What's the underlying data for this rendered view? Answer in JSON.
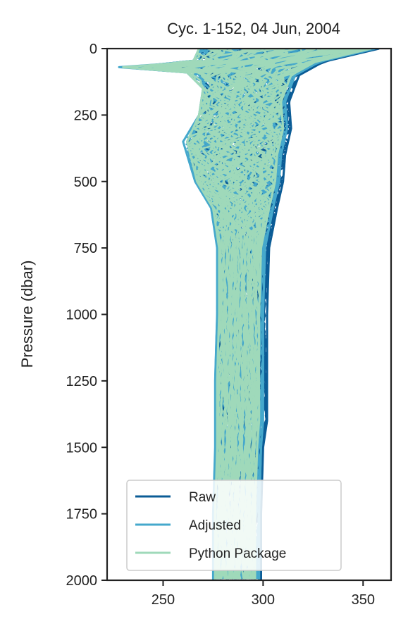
{
  "chart_data": {
    "type": "line",
    "title": "Cyc. 1-152, 04 Jun, 2004",
    "xlabel": "",
    "ylabel": "Pressure (dbar)",
    "xlim": [
      222,
      364
    ],
    "ylim": [
      2000,
      0
    ],
    "y_inverted": true,
    "x_ticks": [
      "250",
      "300",
      "350"
    ],
    "y_ticks": [
      "0",
      "250",
      "500",
      "750",
      "1000",
      "1250",
      "1500",
      "1750",
      "2000"
    ],
    "grid": false,
    "legend_position": "lower-left",
    "series": [
      {
        "name": "Raw",
        "color": "#0b5c96",
        "envelope_min": [
          [
            0,
            270
          ],
          [
            50,
            268
          ],
          [
            70,
            240
          ],
          [
            90,
            268
          ],
          [
            150,
            272
          ],
          [
            250,
            270
          ],
          [
            350,
            262
          ],
          [
            500,
            268
          ],
          [
            600,
            275
          ],
          [
            750,
            278
          ],
          [
            1000,
            278
          ],
          [
            1250,
            277
          ],
          [
            1500,
            277
          ],
          [
            1750,
            276
          ],
          [
            2000,
            276
          ]
        ],
        "envelope_max": [
          [
            0,
            358
          ],
          [
            50,
            330
          ],
          [
            100,
            318
          ],
          [
            200,
            313
          ],
          [
            300,
            314
          ],
          [
            400,
            311
          ],
          [
            500,
            310
          ],
          [
            600,
            307
          ],
          [
            750,
            303
          ],
          [
            1000,
            302
          ],
          [
            1250,
            302
          ],
          [
            1400,
            302
          ],
          [
            1500,
            300
          ],
          [
            1750,
            299
          ],
          [
            2000,
            299
          ]
        ]
      },
      {
        "name": "Adjusted",
        "color": "#45a8cc",
        "envelope_min": [
          [
            0,
            268
          ],
          [
            50,
            265
          ],
          [
            70,
            228
          ],
          [
            90,
            262
          ],
          [
            150,
            270
          ],
          [
            250,
            268
          ],
          [
            350,
            260
          ],
          [
            500,
            266
          ],
          [
            600,
            274
          ],
          [
            750,
            277
          ],
          [
            1000,
            277
          ],
          [
            1250,
            276
          ],
          [
            1500,
            276
          ],
          [
            1750,
            275
          ],
          [
            2000,
            275
          ]
        ],
        "envelope_max": [
          [
            0,
            356
          ],
          [
            50,
            328
          ],
          [
            100,
            316
          ],
          [
            200,
            311
          ],
          [
            300,
            312
          ],
          [
            400,
            309
          ],
          [
            500,
            308
          ],
          [
            600,
            305
          ],
          [
            750,
            301
          ],
          [
            1000,
            300
          ],
          [
            1250,
            300
          ],
          [
            1400,
            300
          ],
          [
            1500,
            299
          ],
          [
            1750,
            298
          ],
          [
            2000,
            298
          ]
        ]
      },
      {
        "name": "Python Package",
        "color": "#9fd9ba",
        "envelope_min": [
          [
            0,
            268
          ],
          [
            50,
            265
          ],
          [
            70,
            230
          ],
          [
            90,
            262
          ],
          [
            150,
            270
          ],
          [
            250,
            268
          ],
          [
            350,
            262
          ],
          [
            500,
            267
          ],
          [
            600,
            275
          ],
          [
            750,
            278
          ],
          [
            1000,
            278
          ],
          [
            1250,
            277
          ],
          [
            1500,
            277
          ],
          [
            1750,
            276
          ],
          [
            2000,
            276
          ]
        ],
        "envelope_max": [
          [
            0,
            354
          ],
          [
            50,
            326
          ],
          [
            100,
            314
          ],
          [
            200,
            309
          ],
          [
            300,
            310
          ],
          [
            400,
            307
          ],
          [
            500,
            306
          ],
          [
            600,
            303
          ],
          [
            750,
            299
          ],
          [
            1000,
            298
          ],
          [
            1250,
            298
          ],
          [
            1400,
            298
          ],
          [
            1500,
            297
          ],
          [
            1750,
            296
          ],
          [
            2000,
            296
          ]
        ]
      }
    ]
  }
}
